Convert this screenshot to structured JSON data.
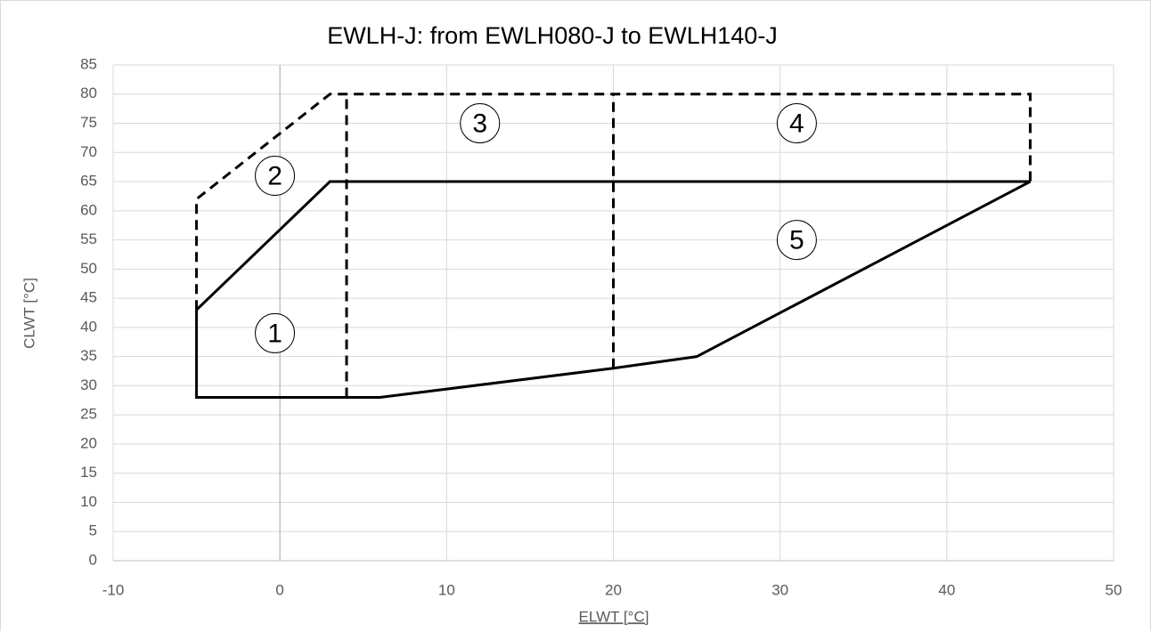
{
  "chart_data": {
    "type": "line",
    "title": "EWLH-J: from EWLH080-J to EWLH140-J",
    "x_label": "ELWT [°C]",
    "y_label": "CLWT [°C]",
    "xlim": [
      -10,
      50
    ],
    "xticks": [
      -10,
      0,
      10,
      20,
      30,
      40,
      50
    ],
    "ylim": [
      0,
      85
    ],
    "yticks": [
      0,
      5,
      10,
      15,
      20,
      25,
      30,
      35,
      40,
      45,
      50,
      55,
      60,
      65,
      70,
      75,
      80,
      85
    ],
    "grid": true,
    "series": [
      {
        "color": "#000000",
        "dashed": false,
        "x": [
          -5,
          3,
          45,
          25,
          20,
          6,
          -5,
          -5
        ],
        "values": [
          43,
          65,
          65,
          35,
          33,
          28,
          28,
          43
        ]
      },
      {
        "color": "#000000",
        "dashed": true,
        "x": [
          -5,
          -5,
          3,
          45,
          45
        ],
        "values": [
          43,
          62,
          80,
          80,
          65
        ]
      },
      {
        "color": "#000000",
        "dashed": true,
        "x": [
          4,
          4
        ],
        "values": [
          28,
          80
        ]
      },
      {
        "color": "#000000",
        "dashed": true,
        "x": [
          20,
          20
        ],
        "values": [
          33,
          80
        ]
      }
    ],
    "annotations": [
      {
        "text": "1",
        "x": -0.3,
        "y": 39
      },
      {
        "text": "2",
        "x": -0.3,
        "y": 66
      },
      {
        "text": "3",
        "x": 12,
        "y": 75
      },
      {
        "text": "4",
        "x": 31,
        "y": 75
      },
      {
        "text": "5",
        "x": 31,
        "y": 55
      }
    ]
  }
}
